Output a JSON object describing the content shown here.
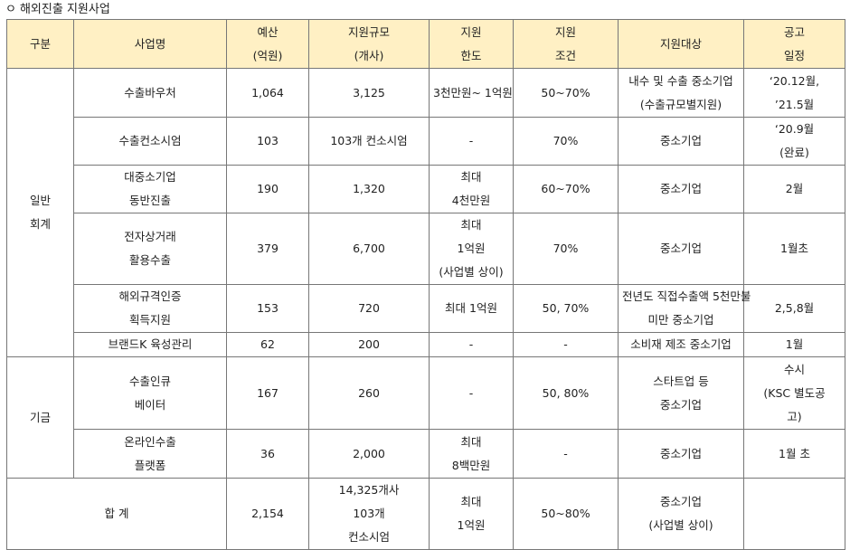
{
  "title": {
    "bullet": "ㅇ",
    "text": "해외진출 지원사업"
  },
  "headers": {
    "category": "구분",
    "project": "사업명",
    "budget": [
      "예산",
      "(억원)"
    ],
    "scale": [
      "지원규모",
      "(개사)"
    ],
    "limit": [
      "지원",
      "한도"
    ],
    "condition": [
      "지원",
      "조건"
    ],
    "target": "지원대상",
    "schedule": [
      "공고",
      "일정"
    ]
  },
  "groups": [
    {
      "label": [
        "일반",
        "회계"
      ]
    },
    {
      "label": [
        "기금"
      ]
    }
  ],
  "rows": [
    {
      "name": [
        "수출바우처"
      ],
      "budget": "1,064",
      "scale": [
        "3,125"
      ],
      "limit": [
        "3천만원~ 1억원"
      ],
      "condition": "50~70%",
      "target": [
        "내수 및 수출 중소기업",
        "(수출규모별지원)"
      ],
      "schedule": [
        "‘20.12월,",
        "’21.5월"
      ]
    },
    {
      "name": [
        "수출컨소시엄"
      ],
      "budget": "103",
      "scale": [
        "103개 컨소시엄"
      ],
      "limit": [
        "-"
      ],
      "condition": "70%",
      "target": [
        "중소기업"
      ],
      "schedule": [
        "‘20.9월",
        "(완료)"
      ]
    },
    {
      "name": [
        "대중소기업",
        "동반진출"
      ],
      "budget": "190",
      "scale": [
        "1,320"
      ],
      "limit": [
        "최대",
        "4천만원"
      ],
      "condition": "60~70%",
      "target": [
        "중소기업"
      ],
      "schedule": [
        "2월"
      ]
    },
    {
      "name": [
        "전자상거래",
        "활용수출"
      ],
      "budget": "379",
      "scale": [
        "6,700"
      ],
      "limit": [
        "최대",
        "1억원",
        "(사업별 상이)"
      ],
      "condition": "70%",
      "target": [
        "중소기업"
      ],
      "schedule": [
        "1월초"
      ]
    },
    {
      "name": [
        "해외규격인증",
        "획득지원"
      ],
      "budget": "153",
      "scale": [
        "720"
      ],
      "limit": [
        "최대 1억원"
      ],
      "condition": "50, 70%",
      "target": [
        "전년도 직접수출액 5천만불",
        "미만 중소기업"
      ],
      "schedule": [
        "2,5,8월"
      ]
    },
    {
      "name": [
        "브랜드K 육성관리"
      ],
      "budget": "62",
      "scale": [
        "200"
      ],
      "limit": [
        "-"
      ],
      "condition": "-",
      "target": [
        "소비재 제조 중소기업"
      ],
      "schedule": [
        "1월"
      ]
    },
    {
      "name": [
        "수출인큐",
        "베이터"
      ],
      "budget": "167",
      "scale": [
        "260"
      ],
      "limit": [
        "-"
      ],
      "condition": "50, 80%",
      "target": [
        "스타트업 등",
        "중소기업"
      ],
      "schedule": [
        "수시",
        "(KSC 별도공",
        "고)"
      ]
    },
    {
      "name": [
        "온라인수출",
        "플랫폼"
      ],
      "budget": "36",
      "scale": [
        "2,000"
      ],
      "limit": [
        "최대",
        "8백만원"
      ],
      "condition": "-",
      "target": [
        "중소기업"
      ],
      "schedule": [
        "1월 초"
      ]
    }
  ],
  "total": {
    "label": "합 계",
    "budget": "2,154",
    "scale": [
      "14,325개사",
      "103개",
      "컨소시엄"
    ],
    "limit": [
      "최대",
      "1억원"
    ],
    "condition": "50~80%",
    "target": [
      "중소기업",
      "(사업별 상이)"
    ],
    "schedule": [
      ""
    ]
  }
}
